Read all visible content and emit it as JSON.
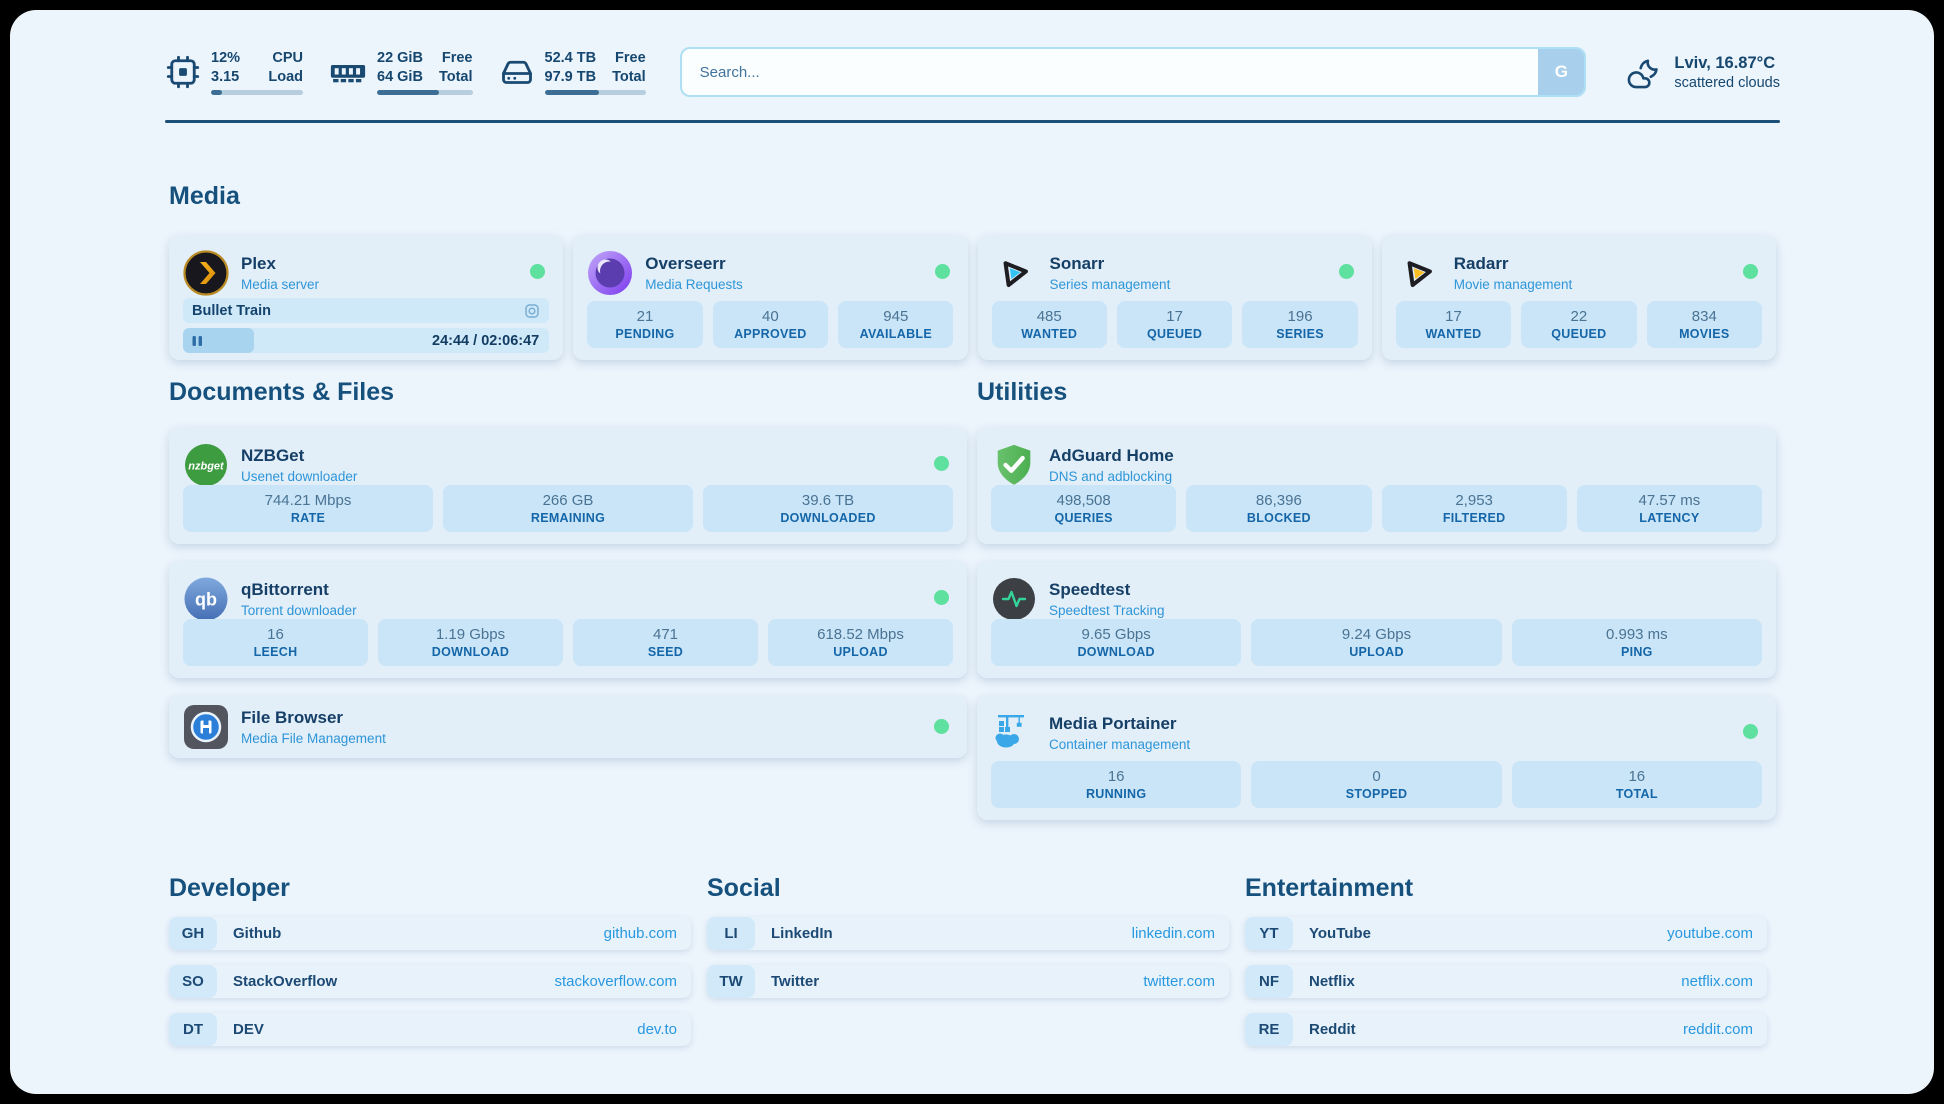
{
  "topbar": {
    "cpu": {
      "value1": "12%",
      "value2": "3.15",
      "label1": "CPU",
      "label2": "Load",
      "progress_pct": 12
    },
    "memory": {
      "value1": "22 GiB",
      "value2": "64 GiB",
      "label1": "Free",
      "label2": "Total",
      "progress_pct": 65
    },
    "disk": {
      "value1": "52.4 TB",
      "value2": "97.9 TB",
      "label1": "Free",
      "label2": "Total",
      "progress_pct": 54
    },
    "search": {
      "placeholder": "Search...",
      "button_label": "G"
    },
    "weather": {
      "location": "Lviv, 16.87°C",
      "condition": "scattered clouds"
    }
  },
  "sections": {
    "media": "Media",
    "documents": "Documents & Files",
    "utilities": "Utilities",
    "developer": "Developer",
    "social": "Social",
    "entertainment": "Entertainment"
  },
  "apps": {
    "plex": {
      "title": "Plex",
      "subtitle": "Media server",
      "now_playing": "Bullet Train",
      "time": "24:44 / 02:06:47",
      "progress_pct": 19.5
    },
    "overseerr": {
      "title": "Overseerr",
      "subtitle": "Media Requests",
      "stats": [
        {
          "value": "21",
          "label": "PENDING"
        },
        {
          "value": "40",
          "label": "APPROVED"
        },
        {
          "value": "945",
          "label": "AVAILABLE"
        }
      ]
    },
    "sonarr": {
      "title": "Sonarr",
      "subtitle": "Series management",
      "stats": [
        {
          "value": "485",
          "label": "WANTED"
        },
        {
          "value": "17",
          "label": "QUEUED"
        },
        {
          "value": "196",
          "label": "SERIES"
        }
      ]
    },
    "radarr": {
      "title": "Radarr",
      "subtitle": "Movie management",
      "stats": [
        {
          "value": "17",
          "label": "WANTED"
        },
        {
          "value": "22",
          "label": "QUEUED"
        },
        {
          "value": "834",
          "label": "MOVIES"
        }
      ]
    },
    "nzbget": {
      "title": "NZBGet",
      "subtitle": "Usenet downloader",
      "stats": [
        {
          "value": "744.21 Mbps",
          "label": "RATE"
        },
        {
          "value": "266 GB",
          "label": "REMAINING"
        },
        {
          "value": "39.6 TB",
          "label": "DOWNLOADED"
        }
      ]
    },
    "qbittorrent": {
      "title": "qBittorrent",
      "subtitle": "Torrent downloader",
      "stats": [
        {
          "value": "16",
          "label": "LEECH"
        },
        {
          "value": "1.19 Gbps",
          "label": "DOWNLOAD"
        },
        {
          "value": "471",
          "label": "SEED"
        },
        {
          "value": "618.52 Mbps",
          "label": "UPLOAD"
        }
      ]
    },
    "filebrowser": {
      "title": "File Browser",
      "subtitle": "Media File Management"
    },
    "adguard": {
      "title": "AdGuard Home",
      "subtitle": "DNS and adblocking",
      "stats": [
        {
          "value": "498,508",
          "label": "QUERIES"
        },
        {
          "value": "86,396",
          "label": "BLOCKED"
        },
        {
          "value": "2,953",
          "label": "FILTERED"
        },
        {
          "value": "47.57 ms",
          "label": "LATENCY"
        }
      ]
    },
    "speedtest": {
      "title": "Speedtest",
      "subtitle": "Speedtest Tracking",
      "stats": [
        {
          "value": "9.65 Gbps",
          "label": "DOWNLOAD"
        },
        {
          "value": "9.24 Gbps",
          "label": "UPLOAD"
        },
        {
          "value": "0.993 ms",
          "label": "PING"
        }
      ]
    },
    "portainer": {
      "title": "Media Portainer",
      "subtitle": "Container management",
      "stats": [
        {
          "value": "16",
          "label": "RUNNING"
        },
        {
          "value": "0",
          "label": "STOPPED"
        },
        {
          "value": "16",
          "label": "TOTAL"
        }
      ]
    }
  },
  "bookmarks": {
    "developer": [
      {
        "abbr": "GH",
        "name": "Github",
        "url": "github.com"
      },
      {
        "abbr": "SO",
        "name": "StackOverflow",
        "url": "stackoverflow.com"
      },
      {
        "abbr": "DT",
        "name": "DEV",
        "url": "dev.to"
      }
    ],
    "social": [
      {
        "abbr": "LI",
        "name": "LinkedIn",
        "url": "linkedin.com"
      },
      {
        "abbr": "TW",
        "name": "Twitter",
        "url": "twitter.com"
      }
    ],
    "entertainment": [
      {
        "abbr": "YT",
        "name": "YouTube",
        "url": "youtube.com"
      },
      {
        "abbr": "NF",
        "name": "Netflix",
        "url": "netflix.com"
      },
      {
        "abbr": "RE",
        "name": "Reddit",
        "url": "reddit.com"
      }
    ]
  },
  "colors": {
    "page_bg": "#ecf4fc",
    "card_bg": "#e2eef8",
    "tile_bg": "#c9e5f7",
    "navy": "#16507c",
    "subtitle_blue": "#2e96d8",
    "link_blue": "#2898e0",
    "status_online_green": "#5ee09e",
    "icon_navy": "#1a4a72"
  }
}
